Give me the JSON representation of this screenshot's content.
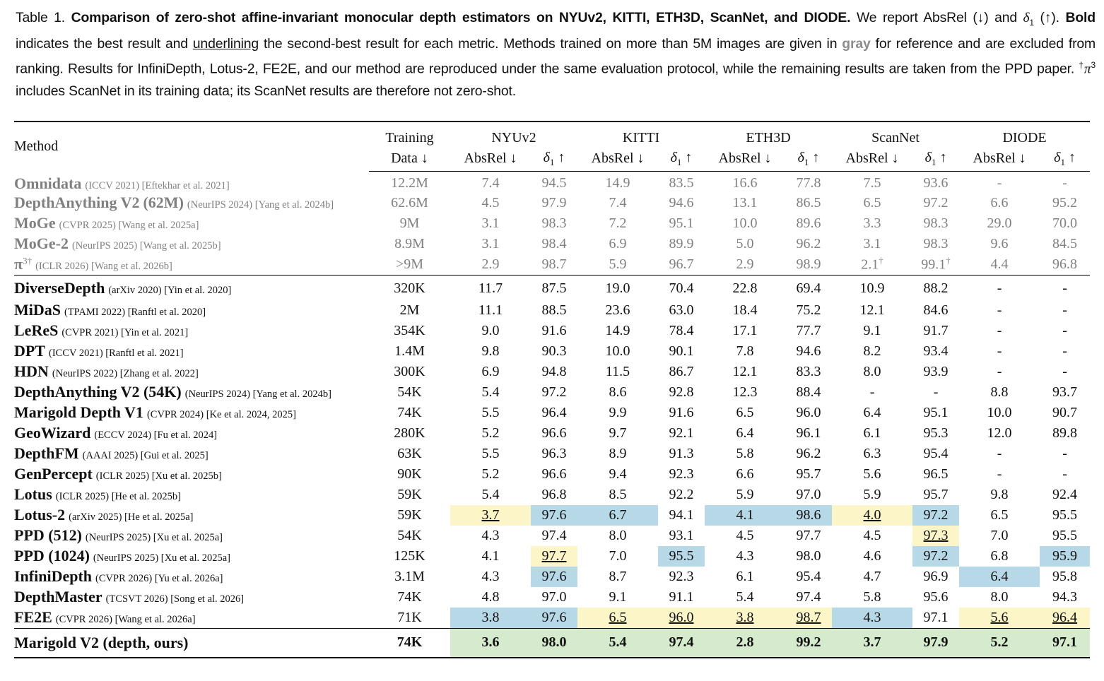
{
  "caption": {
    "label": "Table 1.",
    "title": "Comparison of zero-shot affine-invariant monocular depth estimators on NYUv2, KITTI, ETH3D, ScanNet, and DIODE.",
    "s1": "We report AbsRel (↓) and",
    "delta_sym": "δ",
    "delta_sub": "1",
    "s2": "(↑).",
    "bold_word": "Bold",
    "s3": "indicates the best result and",
    "underline_word": "underlining",
    "s4": "the second-best result for each metric. Methods trained on more than 5M images are given in",
    "gray_word": "gray",
    "s5": "for reference and are excluded from ranking. Results for InfiniDepth, Lotus-2, FE2E, and our method are reproduced under the same evaluation protocol, while the remaining results are taken from the PPD paper.",
    "pi_dagger": "†",
    "pi_sym": "π",
    "pi_sup": "3",
    "s6": "includes ScanNet in its training data; its ScanNet results are therefore not zero-shot."
  },
  "header": {
    "method": "Method",
    "training_1": "Training",
    "training_2": "Data ↓",
    "datasets": [
      "NYUv2",
      "KITTI",
      "ETH3D",
      "ScanNet",
      "DIODE"
    ],
    "absrel": "AbsRel ↓",
    "delta_sym": "δ",
    "delta_sub": "1",
    "delta_arrow": "↑"
  },
  "gray_rows": [
    {
      "name": "Omnidata",
      "venue": "(ICCV 2021) [Eftekhar et al. 2021]",
      "train": "12.2M",
      "cells": [
        {
          "v": "7.4"
        },
        {
          "v": "94.5"
        },
        {
          "v": "14.9"
        },
        {
          "v": "83.5"
        },
        {
          "v": "16.6"
        },
        {
          "v": "77.8"
        },
        {
          "v": "7.5"
        },
        {
          "v": "93.6"
        },
        {
          "v": "-"
        },
        {
          "v": "-"
        }
      ]
    },
    {
      "name": "DepthAnything V2",
      "name_extra": "(62M)",
      "venue": "(NeurIPS 2024) [Yang et al. 2024b]",
      "train": "62.6M",
      "cells": [
        {
          "v": "4.5"
        },
        {
          "v": "97.9"
        },
        {
          "v": "7.4"
        },
        {
          "v": "94.6"
        },
        {
          "v": "13.1"
        },
        {
          "v": "86.5"
        },
        {
          "v": "6.5"
        },
        {
          "v": "97.2"
        },
        {
          "v": "6.6"
        },
        {
          "v": "95.2"
        }
      ]
    },
    {
      "name": "MoGe",
      "venue": "(CVPR 2025) [Wang et al. 2025a]",
      "train": "9M",
      "cells": [
        {
          "v": "3.1"
        },
        {
          "v": "98.3"
        },
        {
          "v": "7.2"
        },
        {
          "v": "95.1"
        },
        {
          "v": "10.0"
        },
        {
          "v": "89.6"
        },
        {
          "v": "3.3"
        },
        {
          "v": "98.3"
        },
        {
          "v": "29.0"
        },
        {
          "v": "70.0"
        }
      ]
    },
    {
      "name": "MoGe-2",
      "venue": "(NeurIPS 2025) [Wang et al. 2025b]",
      "train": "8.9M",
      "cells": [
        {
          "v": "3.1"
        },
        {
          "v": "98.4"
        },
        {
          "v": "6.9"
        },
        {
          "v": "89.9"
        },
        {
          "v": "5.0"
        },
        {
          "v": "96.2"
        },
        {
          "v": "3.1"
        },
        {
          "v": "98.3"
        },
        {
          "v": "9.6"
        },
        {
          "v": "84.5"
        }
      ]
    },
    {
      "name": "π",
      "name_sup": "3†",
      "venue": "(ICLR 2026) [Wang et al. 2026b]",
      "train": ">9M",
      "cells": [
        {
          "v": "2.9"
        },
        {
          "v": "98.7"
        },
        {
          "v": "5.9"
        },
        {
          "v": "96.7"
        },
        {
          "v": "2.9"
        },
        {
          "v": "98.9"
        },
        {
          "v": "2.1",
          "sup": "†"
        },
        {
          "v": "99.1",
          "sup": "†"
        },
        {
          "v": "4.4"
        },
        {
          "v": "96.8"
        }
      ]
    }
  ],
  "main_rows": [
    {
      "name": "DiverseDepth",
      "venue": "(arXiv 2020) [Yin et al. 2020]",
      "train": "320K",
      "cells": [
        {
          "v": "11.7"
        },
        {
          "v": "87.5"
        },
        {
          "v": "19.0"
        },
        {
          "v": "70.4"
        },
        {
          "v": "22.8"
        },
        {
          "v": "69.4"
        },
        {
          "v": "10.9"
        },
        {
          "v": "88.2"
        },
        {
          "v": "-"
        },
        {
          "v": "-"
        }
      ]
    },
    {
      "name": "MiDaS",
      "venue": "(TPAMI 2022) [Ranftl et al. 2020]",
      "train": "2M",
      "cells": [
        {
          "v": "11.1"
        },
        {
          "v": "88.5"
        },
        {
          "v": "23.6"
        },
        {
          "v": "63.0"
        },
        {
          "v": "18.4"
        },
        {
          "v": "75.2"
        },
        {
          "v": "12.1"
        },
        {
          "v": "84.6"
        },
        {
          "v": "-"
        },
        {
          "v": "-"
        }
      ]
    },
    {
      "name": "LeReS",
      "venue": "(CVPR 2021) [Yin et al. 2021]",
      "train": "354K",
      "cells": [
        {
          "v": "9.0"
        },
        {
          "v": "91.6"
        },
        {
          "v": "14.9"
        },
        {
          "v": "78.4"
        },
        {
          "v": "17.1"
        },
        {
          "v": "77.7"
        },
        {
          "v": "9.1"
        },
        {
          "v": "91.7"
        },
        {
          "v": "-"
        },
        {
          "v": "-"
        }
      ]
    },
    {
      "name": "DPT",
      "venue": "(ICCV 2021) [Ranftl et al. 2021]",
      "train": "1.4M",
      "cells": [
        {
          "v": "9.8"
        },
        {
          "v": "90.3"
        },
        {
          "v": "10.0"
        },
        {
          "v": "90.1"
        },
        {
          "v": "7.8"
        },
        {
          "v": "94.6"
        },
        {
          "v": "8.2"
        },
        {
          "v": "93.4"
        },
        {
          "v": "-"
        },
        {
          "v": "-"
        }
      ]
    },
    {
      "name": "HDN",
      "venue": "(NeurIPS 2022) [Zhang et al. 2022]",
      "train": "300K",
      "cells": [
        {
          "v": "6.9"
        },
        {
          "v": "94.8"
        },
        {
          "v": "11.5"
        },
        {
          "v": "86.7"
        },
        {
          "v": "12.1"
        },
        {
          "v": "83.3"
        },
        {
          "v": "8.0"
        },
        {
          "v": "93.9"
        },
        {
          "v": "-"
        },
        {
          "v": "-"
        }
      ]
    },
    {
      "name": "DepthAnything V2 (54K)",
      "venue": "(NeurIPS 2024) [Yang et al. 2024b]",
      "train": "54K",
      "cells": [
        {
          "v": "5.4"
        },
        {
          "v": "97.2"
        },
        {
          "v": "8.6"
        },
        {
          "v": "92.8"
        },
        {
          "v": "12.3"
        },
        {
          "v": "88.4"
        },
        {
          "v": "-"
        },
        {
          "v": "-"
        },
        {
          "v": "8.8"
        },
        {
          "v": "93.7"
        }
      ]
    },
    {
      "name": "Marigold Depth V1",
      "venue": "(CVPR 2024) [Ke et al. 2024, 2025]",
      "train": "74K",
      "cells": [
        {
          "v": "5.5"
        },
        {
          "v": "96.4"
        },
        {
          "v": "9.9"
        },
        {
          "v": "91.6"
        },
        {
          "v": "6.5"
        },
        {
          "v": "96.0"
        },
        {
          "v": "6.4"
        },
        {
          "v": "95.1"
        },
        {
          "v": "10.0"
        },
        {
          "v": "90.7"
        }
      ]
    },
    {
      "name": "GeoWizard",
      "venue": "(ECCV 2024) [Fu et al. 2024]",
      "train": "280K",
      "cells": [
        {
          "v": "5.2"
        },
        {
          "v": "96.6"
        },
        {
          "v": "9.7"
        },
        {
          "v": "92.1"
        },
        {
          "v": "6.4"
        },
        {
          "v": "96.1"
        },
        {
          "v": "6.1"
        },
        {
          "v": "95.3"
        },
        {
          "v": "12.0"
        },
        {
          "v": "89.8"
        }
      ]
    },
    {
      "name": "DepthFM",
      "venue": "(AAAI 2025) [Gui et al. 2025]",
      "train": "63K",
      "cells": [
        {
          "v": "5.5"
        },
        {
          "v": "96.3"
        },
        {
          "v": "8.9"
        },
        {
          "v": "91.3"
        },
        {
          "v": "5.8"
        },
        {
          "v": "96.2"
        },
        {
          "v": "6.3"
        },
        {
          "v": "95.4"
        },
        {
          "v": "-"
        },
        {
          "v": "-"
        }
      ]
    },
    {
      "name": "GenPercept",
      "venue": "(ICLR 2025) [Xu et al. 2025b]",
      "train": "90K",
      "cells": [
        {
          "v": "5.2"
        },
        {
          "v": "96.6"
        },
        {
          "v": "9.4"
        },
        {
          "v": "92.3"
        },
        {
          "v": "6.6"
        },
        {
          "v": "95.7"
        },
        {
          "v": "5.6"
        },
        {
          "v": "96.5"
        },
        {
          "v": "-"
        },
        {
          "v": "-"
        }
      ]
    },
    {
      "name": "Lotus",
      "venue": "(ICLR 2025) [He et al. 2025b]",
      "train": "59K",
      "cells": [
        {
          "v": "5.4"
        },
        {
          "v": "96.8"
        },
        {
          "v": "8.5"
        },
        {
          "v": "92.2"
        },
        {
          "v": "5.9"
        },
        {
          "v": "97.0"
        },
        {
          "v": "5.9"
        },
        {
          "v": "95.7"
        },
        {
          "v": "9.8"
        },
        {
          "v": "92.4"
        }
      ]
    },
    {
      "name": "Lotus-2",
      "venue": "(arXiv 2025) [He et al. 2025a]",
      "train": "59K",
      "cells": [
        {
          "v": "3.7",
          "hl": "ye"
        },
        {
          "v": "97.6",
          "hl": "bl"
        },
        {
          "v": "6.7",
          "hl": "bl"
        },
        {
          "v": "94.1"
        },
        {
          "v": "4.1",
          "hl": "bl"
        },
        {
          "v": "98.6",
          "hl": "bl"
        },
        {
          "v": "4.0",
          "hl": "ye"
        },
        {
          "v": "97.2",
          "hl": "bl"
        },
        {
          "v": "6.5"
        },
        {
          "v": "95.5"
        }
      ]
    },
    {
      "name": "PPD (512)",
      "venue": "(NeurIPS 2025) [Xu et al. 2025a]",
      "train": "54K",
      "cells": [
        {
          "v": "4.3"
        },
        {
          "v": "97.4"
        },
        {
          "v": "8.0"
        },
        {
          "v": "93.1"
        },
        {
          "v": "4.5"
        },
        {
          "v": "97.7"
        },
        {
          "v": "4.5"
        },
        {
          "v": "97.3",
          "hl": "ye"
        },
        {
          "v": "7.0"
        },
        {
          "v": "95.5"
        }
      ]
    },
    {
      "name": "PPD (1024)",
      "venue": "(NeurIPS 2025) [Xu et al. 2025a]",
      "train": "125K",
      "cells": [
        {
          "v": "4.1"
        },
        {
          "v": "97.7",
          "hl": "ye"
        },
        {
          "v": "7.0"
        },
        {
          "v": "95.5",
          "hl": "bl"
        },
        {
          "v": "4.3"
        },
        {
          "v": "98.0"
        },
        {
          "v": "4.6"
        },
        {
          "v": "97.2",
          "hl": "bl"
        },
        {
          "v": "6.8"
        },
        {
          "v": "95.9",
          "hl": "bl"
        }
      ]
    },
    {
      "name": "InfiniDepth",
      "venue": "(CVPR 2026) [Yu et al. 2026a]",
      "train": "3.1M",
      "cells": [
        {
          "v": "4.3"
        },
        {
          "v": "97.6",
          "hl": "bl"
        },
        {
          "v": "8.7"
        },
        {
          "v": "92.3"
        },
        {
          "v": "6.1"
        },
        {
          "v": "95.4"
        },
        {
          "v": "4.7"
        },
        {
          "v": "96.9"
        },
        {
          "v": "6.4",
          "hl": "bl"
        },
        {
          "v": "95.8"
        }
      ]
    },
    {
      "name": "DepthMaster",
      "venue": "(TCSVT 2026) [Song et al. 2026]",
      "train": "74K",
      "cells": [
        {
          "v": "4.8"
        },
        {
          "v": "97.0"
        },
        {
          "v": "9.1"
        },
        {
          "v": "91.1"
        },
        {
          "v": "5.4"
        },
        {
          "v": "97.4"
        },
        {
          "v": "5.8"
        },
        {
          "v": "95.6"
        },
        {
          "v": "8.0"
        },
        {
          "v": "94.3"
        }
      ]
    },
    {
      "name": "FE2E",
      "venue": "(CVPR 2026) [Wang et al. 2026a]",
      "train": "71K",
      "cells": [
        {
          "v": "3.8",
          "hl": "bl"
        },
        {
          "v": "97.6",
          "hl": "bl"
        },
        {
          "v": "6.5",
          "hl": "ye"
        },
        {
          "v": "96.0",
          "hl": "ye"
        },
        {
          "v": "3.8",
          "hl": "ye"
        },
        {
          "v": "98.7",
          "hl": "ye"
        },
        {
          "v": "4.3",
          "hl": "bl"
        },
        {
          "v": "97.1"
        },
        {
          "v": "5.6",
          "hl": "ye"
        },
        {
          "v": "96.4",
          "hl": "ye"
        }
      ]
    }
  ],
  "ours": {
    "name": "Marigold V2 (depth, ours)",
    "train": "74K",
    "cells": [
      {
        "v": "3.6",
        "hl": "gr"
      },
      {
        "v": "98.0",
        "hl": "gr"
      },
      {
        "v": "5.4",
        "hl": "gr"
      },
      {
        "v": "97.4",
        "hl": "gr"
      },
      {
        "v": "2.8",
        "hl": "gr"
      },
      {
        "v": "99.2",
        "hl": "gr"
      },
      {
        "v": "3.7",
        "hl": "gr"
      },
      {
        "v": "97.9",
        "hl": "gr"
      },
      {
        "v": "5.2",
        "hl": "gr"
      },
      {
        "v": "97.1",
        "hl": "gr"
      }
    ]
  },
  "colors": {
    "best": "#b7d9e7",
    "second": "#fcf5c8",
    "ours": "#d6ebcd",
    "gray_text": "#808080"
  }
}
